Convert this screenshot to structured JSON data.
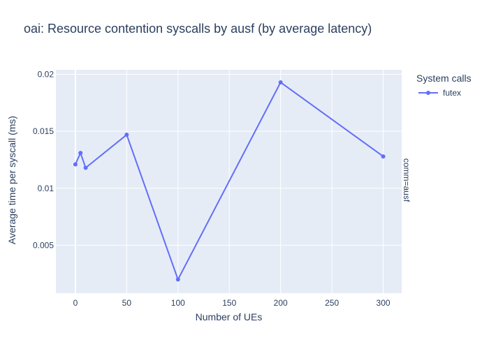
{
  "title": "oai: Resource contention syscalls by ausf (by average latency)",
  "legend": {
    "title": "System calls",
    "items": [
      {
        "label": "futex",
        "color": "#636efa"
      }
    ]
  },
  "facet_label": "comm=ausf",
  "colors": {
    "plot_bg": "#e5ecf6",
    "grid": "#ffffff",
    "text": "#2a3f5f",
    "series": "#636efa"
  },
  "chart_data": {
    "type": "line",
    "title": "oai: Resource contention syscalls by ausf (by average latency)",
    "xlabel": "Number of UEs",
    "ylabel": "Average time per syscall (ms)",
    "xlim": [
      -19,
      318
    ],
    "ylim": [
      0.0008,
      0.0204
    ],
    "xticks": [
      0,
      50,
      100,
      150,
      200,
      250,
      300
    ],
    "xtick_labels": [
      "0",
      "50",
      "100",
      "150",
      "200",
      "250",
      "300"
    ],
    "yticks": [
      0.005,
      0.01,
      0.015,
      0.02
    ],
    "ytick_labels": [
      "0.005",
      "0.01",
      "0.015",
      "0.02"
    ],
    "grid": true,
    "legend_position": "top-right",
    "series": [
      {
        "name": "futex",
        "x": [
          0,
          5,
          10,
          50,
          100,
          200,
          300
        ],
        "y": [
          0.0121,
          0.0131,
          0.0118,
          0.0147,
          0.002,
          0.0193,
          0.0128
        ]
      }
    ]
  }
}
